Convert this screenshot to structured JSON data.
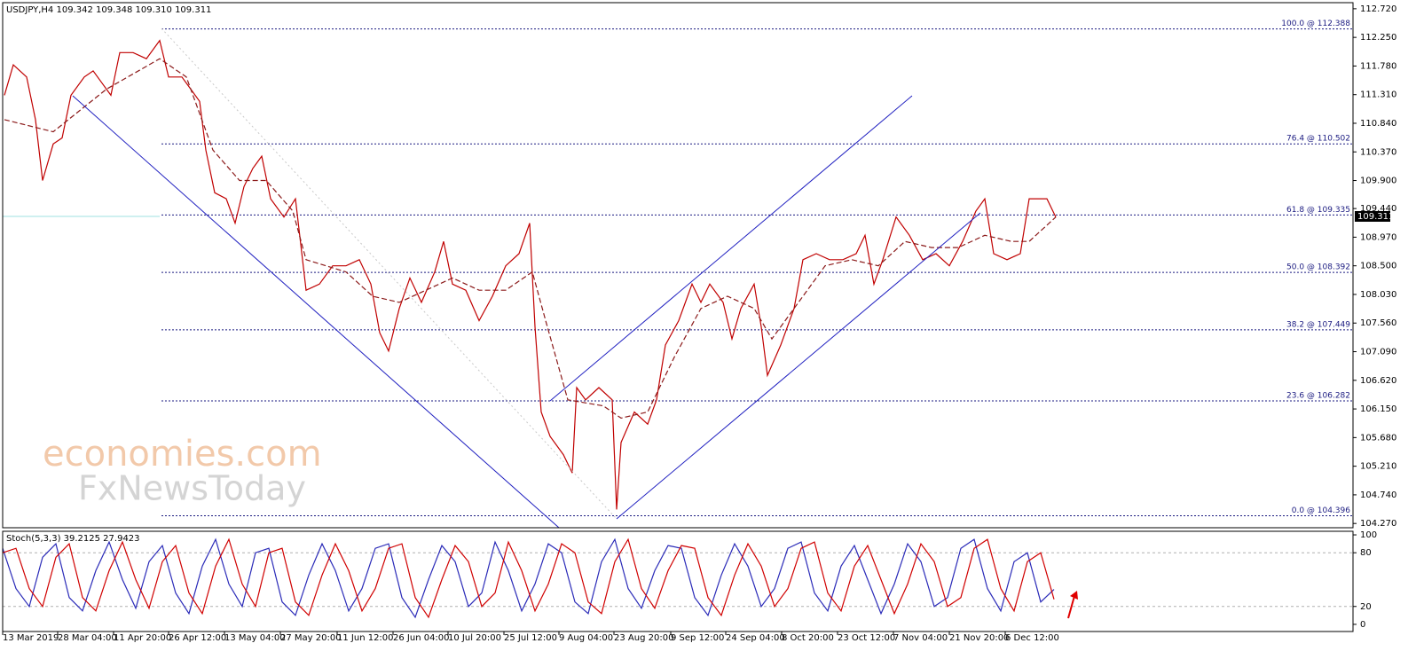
{
  "chart_data": [
    {
      "type": "line",
      "title": "USDJPY,H4  109.342 109.348 109.310 109.311",
      "xlim": [
        3,
        1525
      ],
      "ylim": [
        104.2,
        112.82
      ],
      "yticks": [
        {
          "value": 112.72,
          "label": "112.720"
        },
        {
          "value": 112.25,
          "label": "112.250"
        },
        {
          "value": 111.78,
          "label": "111.780"
        },
        {
          "value": 111.31,
          "label": "111.310"
        },
        {
          "value": 110.84,
          "label": "110.840"
        },
        {
          "value": 110.37,
          "label": "110.370"
        },
        {
          "value": 109.9,
          "label": "109.900"
        },
        {
          "value": 109.44,
          "label": "109.440"
        },
        {
          "value": 108.97,
          "label": "108.970"
        },
        {
          "value": 108.5,
          "label": "108.500"
        },
        {
          "value": 108.03,
          "label": "108.030"
        },
        {
          "value": 107.56,
          "label": "107.560"
        },
        {
          "value": 107.09,
          "label": "107.090"
        },
        {
          "value": 106.62,
          "label": "106.620"
        },
        {
          "value": 106.15,
          "label": "106.150"
        },
        {
          "value": 105.68,
          "label": "105.680"
        },
        {
          "value": 105.21,
          "label": "105.210"
        },
        {
          "value": 104.74,
          "label": "104.740"
        },
        {
          "value": 104.27,
          "label": "104.270"
        }
      ],
      "levels": [
        {
          "value": 112.388,
          "label": "100.0 @ 112.388"
        },
        {
          "value": 110.502,
          "label": "76.4 @ 110.502"
        },
        {
          "value": 109.335,
          "label": "61.8 @ 109.335"
        },
        {
          "value": 108.392,
          "label": "50.0 @ 108.392"
        },
        {
          "value": 107.449,
          "label": "38.2 @ 107.449"
        },
        {
          "value": 106.282,
          "label": "23.6 @ 106.282"
        },
        {
          "value": 104.396,
          "label": "0.0 @ 104.396"
        }
      ],
      "last": 109.311,
      "watermark": [
        "economies.com",
        "FxNewsToday"
      ],
      "series": [
        {
          "color": "#c00000",
          "x": [
            5,
            15,
            30,
            40,
            48,
            60,
            70,
            80,
            95,
            105,
            115,
            125,
            135,
            150,
            165,
            180,
            190,
            205,
            215,
            225,
            232,
            242,
            255,
            265,
            275,
            285,
            295,
            305,
            320,
            333,
            345,
            360,
            375,
            390,
            405,
            418,
            428,
            438,
            450,
            462,
            475,
            490,
            500,
            510,
            525,
            540,
            555,
            570,
            585,
            597,
            603,
            610,
            620,
            635,
            645,
            650,
            660,
            675,
            690,
            695,
            700,
            715,
            730,
            740,
            750,
            765,
            780,
            790,
            800,
            815,
            825,
            835,
            850,
            858,
            865,
            880,
            895,
            905,
            920,
            935,
            950,
            965,
            975,
            985,
            995,
            1010,
            1025,
            1040,
            1055,
            1070,
            1085,
            1100,
            1110,
            1120,
            1135,
            1150,
            1160,
            1170,
            1180,
            1190
          ],
          "values": [
            111.3,
            111.8,
            111.6,
            110.9,
            109.9,
            110.5,
            110.6,
            111.3,
            111.6,
            111.7,
            111.5,
            111.3,
            112.0,
            112.0,
            111.9,
            112.2,
            111.6,
            111.6,
            111.4,
            111.2,
            110.4,
            109.7,
            109.6,
            109.2,
            109.8,
            110.1,
            110.3,
            109.6,
            109.3,
            109.6,
            108.1,
            108.2,
            108.5,
            108.5,
            108.6,
            108.2,
            107.4,
            107.1,
            107.8,
            108.3,
            107.9,
            108.4,
            108.9,
            108.2,
            108.1,
            107.6,
            108.0,
            108.5,
            108.7,
            109.2,
            107.5,
            106.1,
            105.7,
            105.4,
            105.1,
            106.5,
            106.3,
            106.5,
            106.3,
            104.5,
            105.6,
            106.1,
            105.9,
            106.3,
            107.2,
            107.6,
            108.2,
            107.9,
            108.2,
            107.9,
            107.3,
            107.8,
            108.2,
            107.5,
            106.7,
            107.2,
            107.8,
            108.6,
            108.7,
            108.6,
            108.6,
            108.7,
            109.0,
            108.2,
            108.6,
            109.3,
            109.0,
            108.6,
            108.7,
            108.5,
            108.9,
            109.4,
            109.6,
            108.7,
            108.6,
            108.7,
            109.6,
            109.6,
            109.6,
            109.3
          ]
        },
        {
          "color": "#8b1a1a",
          "x": [
            5,
            60,
            120,
            180,
            210,
            240,
            270,
            300,
            330,
            345,
            390,
            420,
            450,
            480,
            510,
            540,
            570,
            600,
            615,
            640,
            680,
            700,
            730,
            760,
            790,
            820,
            850,
            870,
            900,
            930,
            960,
            990,
            1020,
            1050,
            1080,
            1110,
            1140,
            1160,
            1190
          ],
          "values": [
            110.9,
            110.7,
            111.4,
            111.9,
            111.6,
            110.4,
            109.9,
            109.9,
            109.4,
            108.6,
            108.4,
            108.0,
            107.9,
            108.1,
            108.3,
            108.1,
            108.1,
            108.4,
            107.6,
            106.3,
            106.2,
            106.0,
            106.1,
            107.0,
            107.8,
            108.0,
            107.8,
            107.3,
            107.9,
            108.5,
            108.6,
            108.5,
            108.9,
            108.8,
            108.8,
            109.0,
            108.9,
            108.9,
            109.3
          ]
        }
      ]
    },
    {
      "type": "line",
      "title": "Stoch(5,3,3) 39.2125 27.9423",
      "xlim": [
        3,
        1525
      ],
      "ylim": [
        -8,
        104
      ],
      "yticks": [
        100,
        80,
        20,
        0
      ],
      "levels": [
        80,
        20
      ],
      "xticks": [
        {
          "value": 3,
          "label": "13 Mar 2019"
        },
        {
          "value": 65,
          "label": "28 Mar 04:00"
        },
        {
          "value": 128,
          "label": "11 Apr 20:00"
        },
        {
          "value": 190,
          "label": "26 Apr 12:00"
        },
        {
          "value": 253,
          "label": "13 May 04:00"
        },
        {
          "value": 316,
          "label": "27 May 20:00"
        },
        {
          "value": 380,
          "label": "11 Jun 12:00"
        },
        {
          "value": 443,
          "label": "26 Jun 04:00"
        },
        {
          "value": 505,
          "label": "10 Jul 20:00"
        },
        {
          "value": 568,
          "label": "25 Jul 12:00"
        },
        {
          "value": 630,
          "label": "9 Aug 04:00"
        },
        {
          "value": 692,
          "label": "23 Aug 20:00"
        },
        {
          "value": 756,
          "label": "9 Sep 12:00"
        },
        {
          "value": 818,
          "label": "24 Sep 04:00"
        },
        {
          "value": 881,
          "label": "8 Oct 20:00"
        },
        {
          "value": 944,
          "label": "23 Oct 12:00"
        },
        {
          "value": 1007,
          "label": "7 Nov 04:00"
        },
        {
          "value": 1070,
          "label": "21 Nov 20:00"
        },
        {
          "value": 1133,
          "label": "6 Dec 12:00"
        }
      ],
      "x": [
        3,
        18,
        33,
        48,
        63,
        78,
        93,
        108,
        123,
        138,
        153,
        168,
        183,
        198,
        213,
        228,
        243,
        258,
        273,
        288,
        303,
        318,
        333,
        348,
        363,
        378,
        393,
        408,
        423,
        438,
        453,
        468,
        483,
        498,
        513,
        528,
        543,
        558,
        573,
        588,
        603,
        618,
        633,
        648,
        663,
        678,
        693,
        708,
        723,
        738,
        753,
        768,
        783,
        798,
        813,
        828,
        843,
        858,
        873,
        888,
        903,
        918,
        933,
        948,
        963,
        978,
        993,
        1008,
        1023,
        1038,
        1053,
        1068,
        1083,
        1098,
        1113,
        1128,
        1143,
        1158,
        1173,
        1188
      ],
      "series": [
        {
          "color": "#2b2bb8",
          "values": [
            85,
            40,
            20,
            75,
            90,
            30,
            15,
            60,
            92,
            50,
            18,
            70,
            88,
            35,
            12,
            65,
            95,
            45,
            20,
            80,
            85,
            25,
            10,
            55,
            90,
            60,
            15,
            40,
            85,
            90,
            30,
            8,
            50,
            88,
            70,
            20,
            35,
            92,
            60,
            15,
            45,
            90,
            80,
            25,
            12,
            70,
            95,
            40,
            18,
            60,
            88,
            85,
            30,
            10,
            55,
            90,
            65,
            20,
            40,
            85,
            92,
            35,
            15,
            65,
            88,
            50,
            12,
            45,
            90,
            70,
            20,
            30,
            85,
            95,
            40,
            15,
            70,
            80,
            25,
            39
          ]
        },
        {
          "color": "#d00000",
          "values": [
            80,
            85,
            40,
            20,
            75,
            90,
            30,
            15,
            60,
            92,
            50,
            18,
            70,
            88,
            35,
            12,
            65,
            95,
            45,
            20,
            80,
            85,
            25,
            10,
            55,
            90,
            60,
            15,
            40,
            85,
            90,
            30,
            8,
            50,
            88,
            70,
            20,
            35,
            92,
            60,
            15,
            45,
            90,
            80,
            25,
            12,
            70,
            95,
            40,
            18,
            60,
            88,
            85,
            30,
            10,
            55,
            90,
            65,
            20,
            40,
            85,
            92,
            35,
            15,
            65,
            88,
            50,
            12,
            45,
            90,
            70,
            20,
            30,
            85,
            95,
            40,
            15,
            70,
            80,
            28
          ]
        }
      ]
    }
  ]
}
